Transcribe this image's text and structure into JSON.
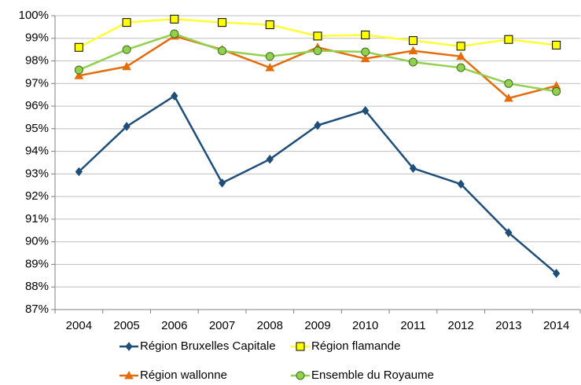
{
  "chart_data": {
    "type": "line",
    "categories": [
      "2004",
      "2005",
      "2006",
      "2007",
      "2008",
      "2009",
      "2010",
      "2011",
      "2012",
      "2013",
      "2014"
    ],
    "series": [
      {
        "name": "Région Bruxelles Capitale",
        "color": "#1f4e79",
        "marker": "diamond",
        "marker_fill": "#1f4e79",
        "marker_stroke": "#1f4e79",
        "values": [
          93.1,
          95.1,
          96.45,
          92.6,
          93.65,
          95.15,
          95.8,
          93.25,
          92.55,
          90.4,
          88.6
        ]
      },
      {
        "name": "Région flamande",
        "color": "#ffff33",
        "marker": "square",
        "marker_fill": "#ffff00",
        "marker_stroke": "#000000",
        "values": [
          98.6,
          99.7,
          99.85,
          99.7,
          99.6,
          99.1,
          99.15,
          98.9,
          98.65,
          98.95,
          98.7
        ]
      },
      {
        "name": "Région wallonne",
        "color": "#e46c0a",
        "marker": "triangle",
        "marker_fill": "#e46c0a",
        "marker_stroke": "#e46c0a",
        "values": [
          97.35,
          97.75,
          99.1,
          98.5,
          97.7,
          98.6,
          98.1,
          98.45,
          98.2,
          96.35,
          96.9
        ]
      },
      {
        "name": "Ensemble du Royaume",
        "color": "#92d050",
        "marker": "circle",
        "marker_fill": "#92d050",
        "marker_stroke": "#3a6b1a",
        "values": [
          97.6,
          98.5,
          99.2,
          98.45,
          98.2,
          98.45,
          98.4,
          97.95,
          97.7,
          97.0,
          96.65
        ]
      }
    ],
    "ylim": [
      87,
      100
    ],
    "yticks": [
      {
        "value": 87,
        "label": "87%"
      },
      {
        "value": 88,
        "label": "88%"
      },
      {
        "value": 89,
        "label": "89%"
      },
      {
        "value": 90,
        "label": "90%"
      },
      {
        "value": 91,
        "label": "91%"
      },
      {
        "value": 92,
        "label": "92%"
      },
      {
        "value": 93,
        "label": "93%"
      },
      {
        "value": 94,
        "label": "94%"
      },
      {
        "value": 95,
        "label": "95%"
      },
      {
        "value": 96,
        "label": "96%"
      },
      {
        "value": 97,
        "label": "97%"
      },
      {
        "value": 98,
        "label": "98%"
      },
      {
        "value": 99,
        "label": "99%"
      },
      {
        "value": 100,
        "label": "100%"
      }
    ],
    "grid": true,
    "legend": "bottom"
  }
}
